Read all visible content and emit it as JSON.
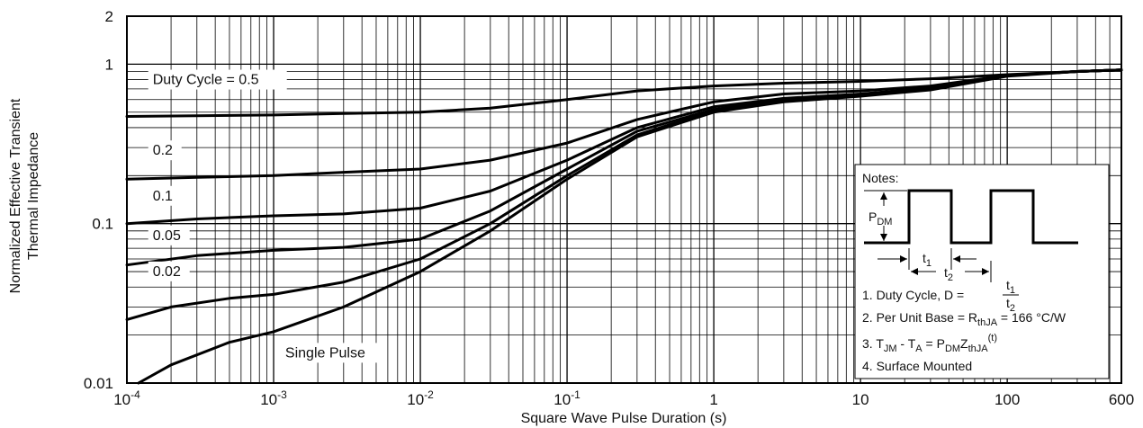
{
  "chart_data": {
    "type": "line",
    "xlabel": "Square Wave Pulse Duration (s)",
    "ylabel_lines": [
      "Normalized Effective Transient",
      "Thermal Impedance"
    ],
    "x_scale": "log",
    "y_scale": "log",
    "xlim": [
      0.0001,
      600
    ],
    "ylim": [
      0.01,
      2
    ],
    "grid": true,
    "x_ticks": [
      {
        "value": 0.0001,
        "base": "10",
        "exp": "-4"
      },
      {
        "value": 0.001,
        "base": "10",
        "exp": "-3"
      },
      {
        "value": 0.01,
        "base": "10",
        "exp": "-2"
      },
      {
        "value": 0.1,
        "base": "10",
        "exp": "-1"
      },
      {
        "value": 1,
        "base": "1",
        "exp": ""
      },
      {
        "value": 10,
        "base": "10",
        "exp": ""
      },
      {
        "value": 100,
        "base": "100",
        "exp": ""
      },
      {
        "value": 600,
        "base": "600",
        "exp": ""
      }
    ],
    "y_ticks": [
      {
        "value": 0.01,
        "label": "0.01"
      },
      {
        "value": 0.1,
        "label": "0.1"
      },
      {
        "value": 1,
        "label": "1"
      },
      {
        "value": 2,
        "label": "2"
      }
    ],
    "series": [
      {
        "name": "Duty Cycle = 0.5",
        "x": [
          0.0001,
          0.001,
          0.003,
          0.01,
          0.03,
          0.1,
          0.3,
          1,
          3,
          10,
          30,
          100,
          300,
          600
        ],
        "y": [
          0.47,
          0.48,
          0.49,
          0.5,
          0.53,
          0.6,
          0.68,
          0.73,
          0.76,
          0.78,
          0.81,
          0.86,
          0.9,
          0.92
        ]
      },
      {
        "name": "0.2",
        "x": [
          0.0001,
          0.0003,
          0.001,
          0.003,
          0.01,
          0.03,
          0.1,
          0.3,
          1,
          3,
          10,
          30,
          100,
          300,
          600
        ],
        "y": [
          0.19,
          0.195,
          0.2,
          0.21,
          0.22,
          0.25,
          0.32,
          0.45,
          0.58,
          0.65,
          0.68,
          0.73,
          0.85,
          0.9,
          0.92
        ]
      },
      {
        "name": "0.1",
        "x": [
          0.0001,
          0.0003,
          0.001,
          0.003,
          0.01,
          0.03,
          0.1,
          0.3,
          1,
          3,
          10,
          30,
          100,
          300,
          600
        ],
        "y": [
          0.1,
          0.107,
          0.112,
          0.115,
          0.125,
          0.16,
          0.25,
          0.4,
          0.54,
          0.61,
          0.65,
          0.71,
          0.85,
          0.9,
          0.92
        ]
      },
      {
        "name": "0.05",
        "x": [
          0.0001,
          0.0003,
          0.001,
          0.003,
          0.01,
          0.03,
          0.1,
          0.3,
          1,
          3,
          10,
          30,
          100,
          300,
          600
        ],
        "y": [
          0.055,
          0.063,
          0.068,
          0.071,
          0.08,
          0.12,
          0.22,
          0.38,
          0.52,
          0.6,
          0.64,
          0.7,
          0.85,
          0.9,
          0.92
        ]
      },
      {
        "name": "0.02",
        "x": [
          0.0001,
          0.0002,
          0.0005,
          0.001,
          0.003,
          0.01,
          0.03,
          0.1,
          0.3,
          1,
          3,
          10,
          30,
          100,
          300,
          600
        ],
        "y": [
          0.025,
          0.03,
          0.034,
          0.036,
          0.043,
          0.06,
          0.1,
          0.2,
          0.36,
          0.51,
          0.59,
          0.64,
          0.7,
          0.85,
          0.9,
          0.92
        ]
      },
      {
        "name": "Single Pulse",
        "x": [
          0.00012,
          0.0002,
          0.0005,
          0.001,
          0.003,
          0.01,
          0.03,
          0.1,
          0.3,
          1,
          3,
          10,
          30,
          100,
          300,
          600
        ],
        "y": [
          0.01,
          0.013,
          0.018,
          0.021,
          0.03,
          0.05,
          0.09,
          0.19,
          0.35,
          0.5,
          0.58,
          0.63,
          0.69,
          0.84,
          0.9,
          0.92
        ]
      }
    ],
    "curve_labels": [
      {
        "text": "Duty Cycle = 0.5",
        "x": 0.00015,
        "y": 0.75
      },
      {
        "text": "0.2",
        "x": 0.00015,
        "y": 0.27
      },
      {
        "text": "0.1",
        "x": 0.00015,
        "y": 0.14
      },
      {
        "text": "0.05",
        "x": 0.00015,
        "y": 0.079
      },
      {
        "text": "0.02",
        "x": 0.00015,
        "y": 0.047
      },
      {
        "text": "Single Pulse",
        "x": 0.0012,
        "y": 0.0145
      }
    ]
  },
  "notes": {
    "title": "Notes:",
    "pdm_label": "P",
    "pdm_sub": "DM",
    "t1_label": "t",
    "t1_sub": "1",
    "t2_label": "t",
    "t2_sub": "2",
    "note1_text": "1. Duty Cycle, D = ",
    "note1_num": "t",
    "note1_num_sub": "1",
    "note1_den": "t",
    "note1_den_sub": "2",
    "note2_text": "2. Per Unit Base = R",
    "note2_sub": "thJA",
    "note2_tail": " = 166 °C/W",
    "note3_a": "3. T",
    "note3_a_sub": "JM",
    "note3_b": " - T",
    "note3_b_sub": "A",
    "note3_c": " = P",
    "note3_c_sub": "DM",
    "note3_d": "Z",
    "note3_d_sub": "thJA",
    "note3_sup": "(t)",
    "note4": "4. Surface Mounted"
  }
}
